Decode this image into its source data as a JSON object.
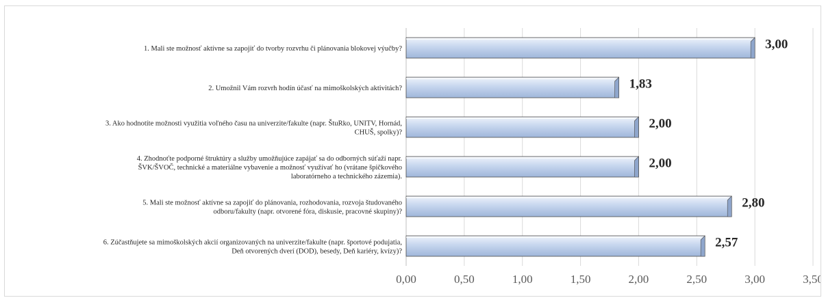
{
  "chart_data": {
    "type": "bar",
    "orientation": "horizontal",
    "categories": [
      [
        "1. Mali ste možnosť aktívne sa zapojiť do tvorby rozvrhu či plánovania blokovej výučby?"
      ],
      [
        "2. Umožnil Vám rozvrh hodín účasť na mimoškolských aktivitách?"
      ],
      [
        "3. Ako hodnotíte možnosti využitia voľného času na univerzite/fakulte (napr. ŠtuRko, UNITV, Hornád,",
        "CHUŠ, spolky)?"
      ],
      [
        "4. Zhodnoťte podporné štruktúry a služby umožňujúce zapájať sa do odborných súťaží napr.",
        "ŠVK/ŠVOČ, technické a materiálne vybavenie a možnosť využívať ho (vrátane špičkového",
        "laboratórneho a technického zázemia)."
      ],
      [
        "5. Mali ste možnosť aktívne sa zapojiť do plánovania, rozhodovania, rozvoja študovaného",
        "odboru/fakulty (napr. otvorené fóra, diskusie, pracovné skupiny)?"
      ],
      [
        "6. Zúčastňujete sa mimoškolských akcií organizovaných na univerzite/fakulte (napr. športové podujatia,",
        "Deň otvorených dverí (DOD), besedy, Deň kariéry, kvízy)?"
      ]
    ],
    "values": [
      3.0,
      1.83,
      2.0,
      2.0,
      2.8,
      2.57
    ],
    "value_labels": [
      "3,00",
      "1,83",
      "2,00",
      "2,00",
      "2,80",
      "2,57"
    ],
    "xlim": [
      0,
      3.5
    ],
    "ticks": [
      0,
      0.5,
      1.0,
      1.5,
      2.0,
      2.5,
      3.0,
      3.5
    ],
    "tick_labels": [
      "0,00",
      "0,50",
      "1,00",
      "1,50",
      "2,00",
      "2,50",
      "3,00",
      "3,50"
    ],
    "grid": true,
    "legend": "none",
    "colors": {
      "bar_light": "#eef3fb",
      "bar_mid": "#c6d6ee",
      "bar_dark": "#9fb6da",
      "bar_edge": "#4a4a4a",
      "grid": "#d9d9d9",
      "axis": "#bfbfbf"
    }
  }
}
